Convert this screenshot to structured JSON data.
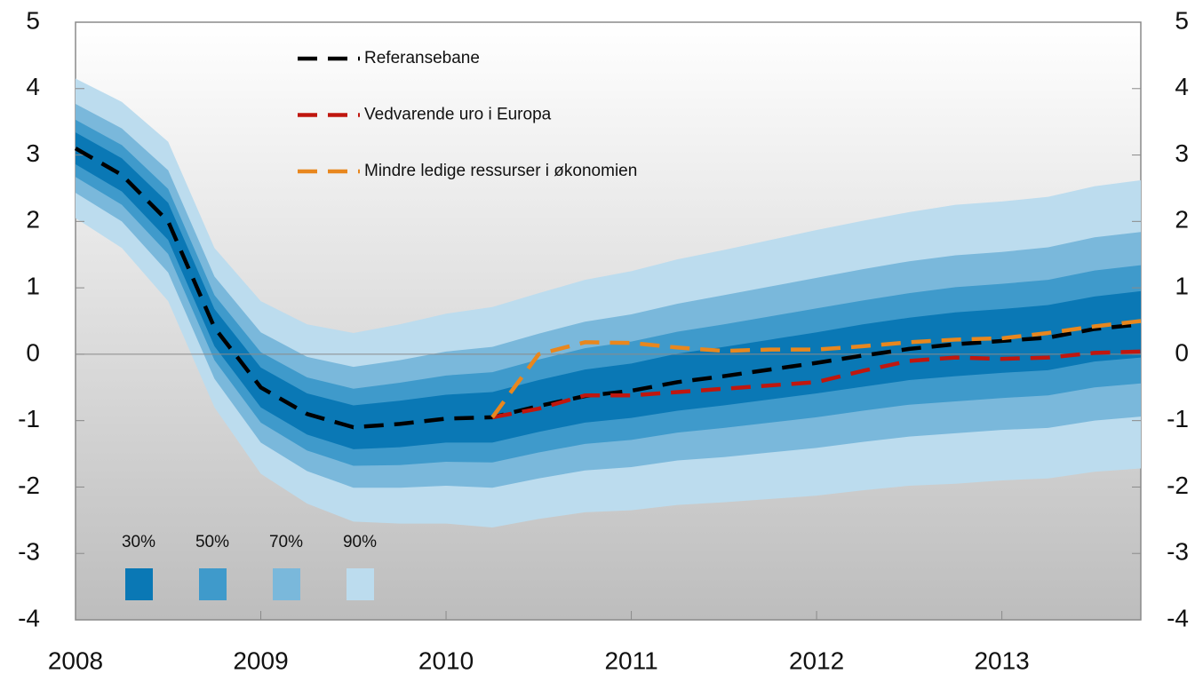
{
  "chart_data": {
    "type": "fan",
    "x": [
      2008,
      2008.25,
      2008.5,
      2008.75,
      2009,
      2009.25,
      2009.5,
      2009.75,
      2010,
      2010.25,
      2010.5,
      2010.75,
      2011,
      2011.25,
      2011.5,
      2011.75,
      2012,
      2012.25,
      2012.5,
      2012.75,
      2013,
      2013.25,
      2013.5,
      2013.75
    ],
    "xlim": [
      2008,
      2013.75
    ],
    "xticks": [
      2008,
      2009,
      2010,
      2011,
      2012,
      2013
    ],
    "ylim": [
      -4,
      5
    ],
    "yticks": [
      -4,
      -3,
      -2,
      -1,
      0,
      1,
      2,
      3,
      4,
      5
    ],
    "series": [
      {
        "name": "Referansebane",
        "color": "#000000",
        "values": [
          3.1,
          2.7,
          2.0,
          0.4,
          -0.5,
          -0.9,
          -1.1,
          -1.05,
          -0.97,
          -0.95,
          -0.78,
          -0.63,
          -0.55,
          -0.42,
          -0.33,
          -0.23,
          -0.13,
          -0.02,
          0.08,
          0.15,
          0.2,
          0.25,
          0.38,
          0.45
        ]
      },
      {
        "name": "Vedvarende uro i Europa",
        "color": "#c0170f",
        "values": [
          null,
          null,
          null,
          null,
          null,
          null,
          null,
          null,
          null,
          -0.95,
          -0.82,
          -0.62,
          -0.62,
          -0.57,
          -0.52,
          -0.47,
          -0.42,
          -0.25,
          -0.1,
          -0.05,
          -0.07,
          -0.05,
          0.02,
          0.04
        ]
      },
      {
        "name": "Mindre ledige ressurser i økonomien",
        "color": "#e8871e",
        "values": [
          null,
          null,
          null,
          null,
          null,
          null,
          null,
          null,
          null,
          -0.95,
          0.0,
          0.18,
          0.17,
          0.1,
          0.05,
          0.07,
          0.07,
          0.12,
          0.18,
          0.22,
          0.24,
          0.32,
          0.42,
          0.5
        ]
      }
    ],
    "bands": [
      {
        "name": "30%",
        "color": "#0a78b5",
        "lower": [
          2.86,
          2.45,
          1.72,
          0.12,
          -0.8,
          -1.21,
          -1.43,
          -1.4,
          -1.33,
          -1.33,
          -1.17,
          -1.03,
          -0.96,
          -0.85,
          -0.77,
          -0.68,
          -0.59,
          -0.49,
          -0.39,
          -0.33,
          -0.28,
          -0.24,
          -0.11,
          -0.05
        ],
        "upper": [
          3.34,
          2.95,
          2.28,
          0.68,
          -0.2,
          -0.59,
          -0.77,
          -0.7,
          -0.61,
          -0.57,
          -0.39,
          -0.23,
          -0.14,
          0.01,
          0.11,
          0.22,
          0.33,
          0.45,
          0.55,
          0.63,
          0.68,
          0.74,
          0.87,
          0.95
        ]
      },
      {
        "name": "50%",
        "color": "#3f9acb",
        "lower": [
          2.67,
          2.25,
          1.51,
          -0.09,
          -1.03,
          -1.45,
          -1.68,
          -1.67,
          -1.62,
          -1.63,
          -1.48,
          -1.35,
          -1.29,
          -1.18,
          -1.11,
          -1.03,
          -0.95,
          -0.85,
          -0.76,
          -0.71,
          -0.66,
          -0.62,
          -0.5,
          -0.44
        ],
        "upper": [
          3.53,
          3.15,
          2.49,
          0.89,
          0.03,
          -0.35,
          -0.52,
          -0.43,
          -0.32,
          -0.27,
          -0.08,
          0.09,
          0.19,
          0.34,
          0.45,
          0.57,
          0.69,
          0.81,
          0.92,
          1.01,
          1.06,
          1.12,
          1.26,
          1.34
        ]
      },
      {
        "name": "70%",
        "color": "#7ab8db",
        "lower": [
          2.43,
          2.0,
          1.23,
          -0.37,
          -1.33,
          -1.76,
          -2.01,
          -2.01,
          -1.98,
          -2.01,
          -1.87,
          -1.75,
          -1.7,
          -1.6,
          -1.55,
          -1.48,
          -1.41,
          -1.32,
          -1.24,
          -1.19,
          -1.14,
          -1.11,
          -1.0,
          -0.94
        ],
        "upper": [
          3.77,
          3.4,
          2.77,
          1.17,
          0.33,
          -0.04,
          -0.19,
          -0.09,
          0.04,
          0.11,
          0.31,
          0.49,
          0.6,
          0.76,
          0.89,
          1.02,
          1.15,
          1.28,
          1.4,
          1.49,
          1.54,
          1.61,
          1.76,
          1.84
        ]
      },
      {
        "name": "90%",
        "color": "#bcdcee",
        "lower": [
          2.05,
          1.6,
          0.8,
          -0.8,
          -1.8,
          -2.25,
          -2.52,
          -2.55,
          -2.55,
          -2.61,
          -2.48,
          -2.38,
          -2.35,
          -2.27,
          -2.23,
          -2.18,
          -2.13,
          -2.05,
          -1.98,
          -1.95,
          -1.9,
          -1.87,
          -1.77,
          -1.72
        ],
        "upper": [
          4.15,
          3.8,
          3.2,
          1.6,
          0.8,
          0.45,
          0.32,
          0.45,
          0.61,
          0.71,
          0.92,
          1.12,
          1.25,
          1.43,
          1.57,
          1.72,
          1.87,
          2.01,
          2.14,
          2.25,
          2.3,
          2.37,
          2.53,
          2.62
        ]
      }
    ]
  }
}
